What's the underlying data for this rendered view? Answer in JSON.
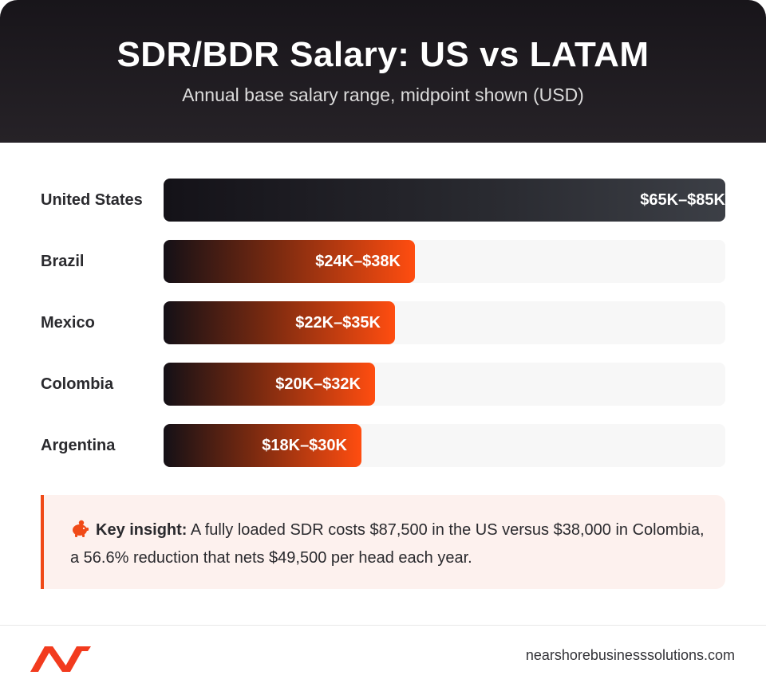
{
  "header": {
    "title": "SDR/BDR Salary: US vs LATAM",
    "subtitle": "Annual base salary range, midpoint shown (USD)"
  },
  "chart_data": {
    "type": "bar",
    "orientation": "horizontal",
    "title": "SDR/BDR Salary: US vs LATAM",
    "subtitle": "Annual base salary range, midpoint shown (USD)",
    "unit": "USD",
    "xlim": [
      0,
      85000
    ],
    "grid": false,
    "categories": [
      "United States",
      "Brazil",
      "Mexico",
      "Colombia",
      "Argentina"
    ],
    "values": [
      85000,
      38000,
      35000,
      32000,
      30000
    ],
    "labels": [
      "$65K–$85K",
      "$24K–$38K",
      "$22K–$35K",
      "$20K–$32K",
      "$18K–$30K"
    ],
    "colors": {
      "us_bar": "#3c3f46",
      "latam_bar": "#ff4d10",
      "bar_start": "#141016",
      "track": "#f7f7f7"
    }
  },
  "insight": {
    "icon": "piggy-bank-icon",
    "lead": "Key insight:",
    "text": " A fully loaded SDR costs $87,500 in the US versus $38,000 in Colombia, a 56.6% reduction that nets $49,500 per head each year."
  },
  "footer": {
    "logo": "nearshore-logo-icon",
    "website": "nearshorebusinesssolutions.com"
  },
  "colors": {
    "accent": "#f04a17",
    "header_bg": "#18151a",
    "insight_bg": "#fdf1ee"
  }
}
